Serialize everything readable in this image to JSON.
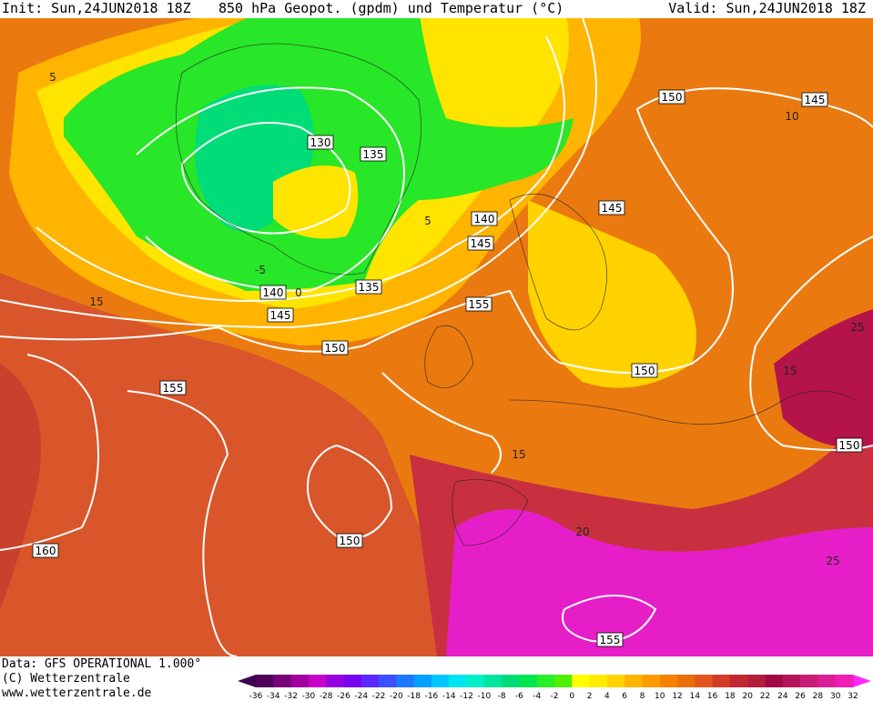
{
  "header": {
    "init": "Init: Sun,24JUN2018 18Z",
    "title": "850 hPa Geopot. (gpdm) und Temperatur (°C)",
    "valid": "Valid: Sun,24JUN2018 18Z"
  },
  "map": {
    "geopotential_labels": [
      "130",
      "135",
      "140",
      "145",
      "135",
      "140",
      "145",
      "150",
      "155",
      "155",
      "150",
      "145",
      "145",
      "150",
      "150",
      "150",
      "160",
      "155"
    ],
    "temperature_labels": [
      "5",
      "-5",
      "0",
      "5",
      "15",
      "15",
      "20",
      "25",
      "15",
      "25",
      "10"
    ]
  },
  "footer": {
    "data": "Data: GFS OPERATIONAL 1.000°",
    "copyright": "(C) Wetterzentrale",
    "url": "www.wetterzentrale.de"
  },
  "colorbar": {
    "levels": [
      -36,
      -34,
      -32,
      -30,
      -28,
      -26,
      -24,
      -22,
      -20,
      -18,
      -16,
      -14,
      -12,
      -10,
      -8,
      -6,
      -4,
      -2,
      0,
      2,
      4,
      6,
      8,
      10,
      12,
      14,
      16,
      18,
      20,
      22,
      24,
      26,
      28,
      30,
      32
    ],
    "colors": [
      "#50005a",
      "#780078",
      "#a000a0",
      "#c800c8",
      "#9600dc",
      "#7800f0",
      "#5a28ff",
      "#3c50ff",
      "#1e78ff",
      "#00a0ff",
      "#00c8ff",
      "#00e6f0",
      "#00f0c8",
      "#00e6a0",
      "#00dc78",
      "#00e650",
      "#28f028",
      "#50f000",
      "#ffff00",
      "#ffeb00",
      "#ffd200",
      "#ffb400",
      "#ff9b00",
      "#f58200",
      "#eb6e0a",
      "#e1551e",
      "#d23c28",
      "#c32832",
      "#b41e3c",
      "#a00a46",
      "#b4145a",
      "#c81e78",
      "#dc1e96",
      "#f01eb4"
    ]
  }
}
